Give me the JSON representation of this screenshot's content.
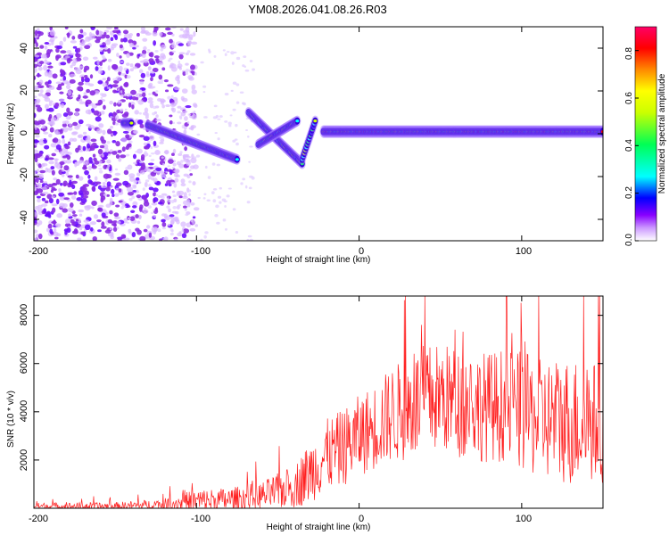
{
  "title": "YM08.2026.041.08.26.R03",
  "chart_data": [
    {
      "type": "heatmap",
      "xlabel": "Height of straight line (km)",
      "ylabel": "Frequency (Hz)",
      "xlim": [
        -200,
        150
      ],
      "ylim": [
        -50,
        50
      ],
      "xticks": [
        -200,
        -100,
        0,
        100
      ],
      "xtick_labels": [
        "-200",
        "-100",
        "0",
        "100"
      ],
      "yticks": [
        -40,
        -20,
        0,
        20,
        40
      ],
      "ytick_labels": [
        "-40",
        "-20",
        "0",
        "20",
        "40"
      ],
      "colorbar": {
        "label": "Normalized spectral amplitude",
        "range": [
          0,
          0.9
        ],
        "ticks": [
          0.0,
          0.2,
          0.4,
          0.6,
          0.8
        ],
        "tick_labels": [
          "0.0",
          "0.2",
          "0.4",
          "0.6",
          "0.8"
        ],
        "colors": [
          "#ffffff",
          "#cc99ff",
          "#8800ff",
          "#0000ff",
          "#00ffff",
          "#00ff66",
          "#ccff00",
          "#ffff00",
          "#ff8800",
          "#ff0000",
          "#ff0066"
        ]
      },
      "features": {
        "noise_region_x": [
          -200,
          -115
        ],
        "faint_noise_x": [
          -160,
          -65
        ],
        "band_segments": [
          {
            "x": [
              -145,
              -140
            ],
            "y": [
              5,
              5
            ]
          },
          {
            "x": [
              -130,
              -75
            ],
            "y": [
              4,
              -12
            ]
          },
          {
            "x": [
              -68,
              -35
            ],
            "y": [
              10,
              -14
            ]
          },
          {
            "x": [
              -62,
              -38
            ],
            "y": [
              -5,
              6
            ]
          },
          {
            "x": [
              -35,
              -27
            ],
            "y": [
              -12,
              6
            ]
          },
          {
            "x": [
              -22,
              150
            ],
            "y": [
              1,
              1
            ]
          }
        ]
      }
    },
    {
      "type": "line",
      "series": [
        {
          "name": "SNR",
          "color": "#ff2020"
        }
      ],
      "xlabel": "Height of straight line (km)",
      "ylabel": "SNR (10 * v/v)",
      "xlim": [
        -200,
        150
      ],
      "ylim": [
        0,
        8800
      ],
      "xticks": [
        -200,
        -100,
        0,
        100
      ],
      "xtick_labels": [
        "-200",
        "-100",
        "0",
        "100"
      ],
      "yticks": [
        2000,
        4000,
        6000,
        8000
      ],
      "ytick_labels": [
        "2000",
        "4000",
        "6000",
        "8000"
      ],
      "envelope_x": [
        -200,
        -150,
        -120,
        -100,
        -80,
        -60,
        -40,
        -30,
        -20,
        -10,
        0,
        10,
        20,
        30,
        40,
        50,
        60,
        70,
        80,
        90,
        100,
        110,
        120,
        130,
        140,
        150
      ],
      "envelope_mean": [
        80,
        80,
        150,
        300,
        350,
        500,
        900,
        1500,
        2200,
        2500,
        3000,
        3400,
        3900,
        4100,
        4500,
        4600,
        4400,
        4300,
        4200,
        4300,
        4000,
        3700,
        3700,
        3600,
        3600,
        3500
      ],
      "envelope_amp": [
        150,
        170,
        250,
        500,
        500,
        600,
        900,
        1300,
        1500,
        1600,
        1700,
        1800,
        2000,
        2200,
        2300,
        2300,
        2300,
        2300,
        2300,
        2400,
        2500,
        2500,
        2600,
        2700,
        2600,
        2500
      ]
    }
  ]
}
